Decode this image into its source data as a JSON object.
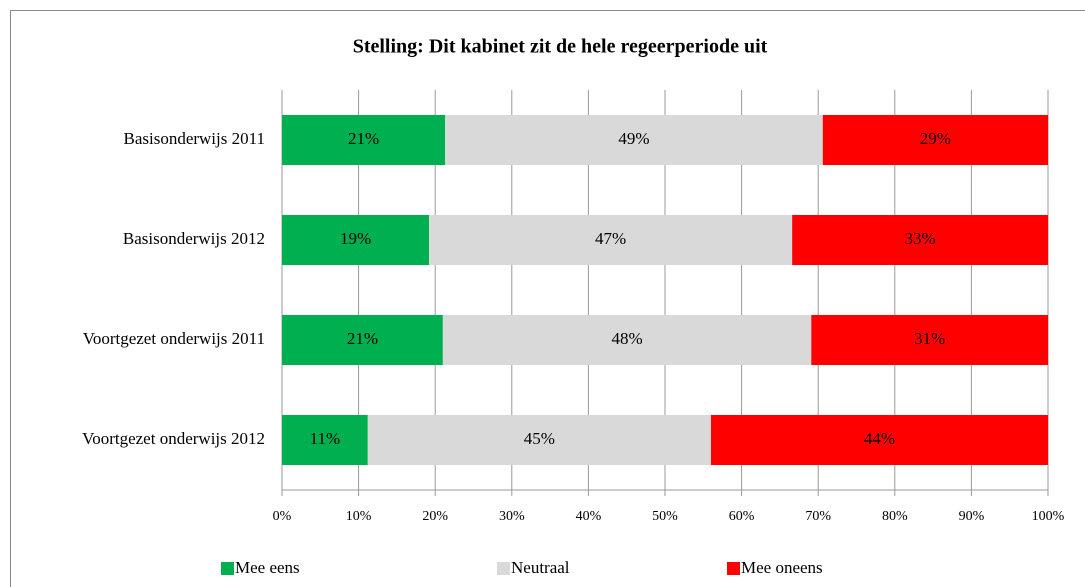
{
  "chart_data": {
    "type": "stacked_barh",
    "title": "Stelling: Dit kabinet zit de hele regeerperiode uit",
    "categories": [
      "Basisonderwijs 2011",
      "Basisonderwijs 2012",
      "Voortgezet onderwijs 2011",
      "Voortgezet onderwijs 2012"
    ],
    "series": [
      {
        "name": "Mee eens",
        "color": "#00b050",
        "values": [
          21.3,
          19.2,
          21.0,
          11.2
        ],
        "value_labels": [
          "21%",
          "19%",
          "21%",
          "11%"
        ]
      },
      {
        "name": "Neutraal",
        "color": "#d9d9d9",
        "values": [
          49.3,
          47.4,
          48.1,
          44.8
        ],
        "value_labels": [
          "49%",
          "47%",
          "48%",
          "45%"
        ]
      },
      {
        "name": "Mee oneens",
        "color": "#ff0000",
        "values": [
          29.4,
          33.4,
          30.9,
          44.0
        ],
        "value_labels": [
          "29%",
          "33%",
          "31%",
          "44%"
        ]
      }
    ],
    "xlim": [
      0,
      100
    ],
    "xticks": [
      {
        "value": 0,
        "label": "0%"
      },
      {
        "value": 10,
        "label": "10%"
      },
      {
        "value": 20,
        "label": "20%"
      },
      {
        "value": 30,
        "label": "30%"
      },
      {
        "value": 40,
        "label": "40%"
      },
      {
        "value": 50,
        "label": "50%"
      },
      {
        "value": 60,
        "label": "60%"
      },
      {
        "value": 70,
        "label": "70%"
      },
      {
        "value": 80,
        "label": "80%"
      },
      {
        "value": 90,
        "label": "90%"
      },
      {
        "value": 100,
        "label": "100%"
      }
    ],
    "grid": true,
    "legend": "bottom"
  }
}
